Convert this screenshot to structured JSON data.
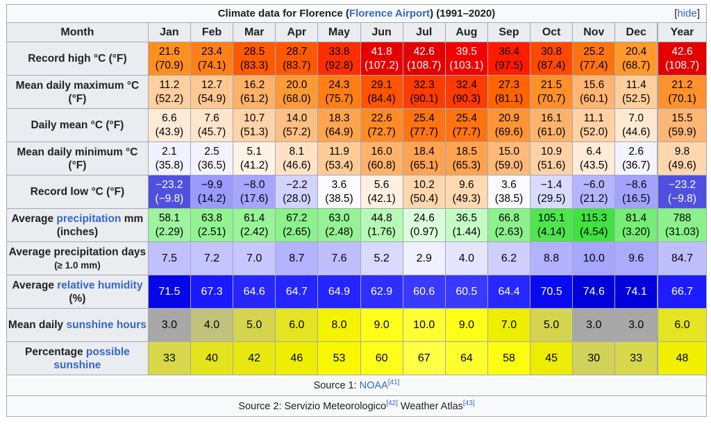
{
  "caption": {
    "prefix": "Climate data for Florence (",
    "link": "Florence Airport",
    "suffix": ") (1991–2020)",
    "hide_open": "[",
    "hide_label": "hide",
    "hide_close": "]"
  },
  "header": {
    "month_label": "Month",
    "months": [
      "Jan",
      "Feb",
      "Mar",
      "Apr",
      "May",
      "Jun",
      "Jul",
      "Aug",
      "Sep",
      "Oct",
      "Nov",
      "Dec"
    ],
    "year_label": "Year"
  },
  "rows": [
    {
      "key": "record-high",
      "label_parts": [
        {
          "text": "Record high °C (°F)",
          "link": false
        }
      ],
      "cells": [
        {
          "top": "21.6",
          "bottom": "(70.9)",
          "bg": "#ff8f1f",
          "fg": "#000000"
        },
        {
          "top": "23.4",
          "bottom": "(74.1)",
          "bg": "#ff8017",
          "fg": "#000000"
        },
        {
          "top": "28.5",
          "bottom": "(83.3)",
          "bg": "#ff5a00",
          "fg": "#000000"
        },
        {
          "top": "28.7",
          "bottom": "(83.7)",
          "bg": "#ff5900",
          "fg": "#000000"
        },
        {
          "top": "33.8",
          "bottom": "(92.8)",
          "bg": "#ff2e00",
          "fg": "#000000"
        },
        {
          "top": "41.8",
          "bottom": "(107.2)",
          "bg": "#e60000",
          "fg": "#ffffff"
        },
        {
          "top": "42.6",
          "bottom": "(108.7)",
          "bg": "#e30000",
          "fg": "#ffffff"
        },
        {
          "top": "39.5",
          "bottom": "(103.1)",
          "bg": "#f30000",
          "fg": "#ffffff"
        },
        {
          "top": "36.4",
          "bottom": "(97.5)",
          "bg": "#ff1a00",
          "fg": "#000000"
        },
        {
          "top": "30.8",
          "bottom": "(87.4)",
          "bg": "#ff4800",
          "fg": "#000000"
        },
        {
          "top": "25.2",
          "bottom": "(77.4)",
          "bg": "#ff7410",
          "fg": "#000000"
        },
        {
          "top": "20.4",
          "bottom": "(68.7)",
          "bg": "#ff9a2b",
          "fg": "#000000"
        },
        {
          "top": "42.6",
          "bottom": "(108.7)",
          "bg": "#e30000",
          "fg": "#ffffff"
        }
      ]
    },
    {
      "key": "mean-daily-maximum",
      "label_parts": [
        {
          "text": "Mean daily maximum °C (°F)",
          "link": false
        }
      ],
      "cells": [
        {
          "top": "11.2",
          "bottom": "(52.2)",
          "bg": "#ffcf9f",
          "fg": "#000000"
        },
        {
          "top": "12.7",
          "bottom": "(54.9)",
          "bg": "#ffc893",
          "fg": "#000000"
        },
        {
          "top": "16.2",
          "bottom": "(61.2)",
          "bg": "#ffb16a",
          "fg": "#000000"
        },
        {
          "top": "20.0",
          "bottom": "(68.0)",
          "bg": "#ff9a36",
          "fg": "#000000"
        },
        {
          "top": "24.3",
          "bottom": "(75.7)",
          "bg": "#ff7e16",
          "fg": "#000000"
        },
        {
          "top": "29.1",
          "bottom": "(84.4)",
          "bg": "#ff5400",
          "fg": "#000000"
        },
        {
          "top": "32.3",
          "bottom": "(90.1)",
          "bg": "#ff3b00",
          "fg": "#000000"
        },
        {
          "top": "32.4",
          "bottom": "(90.3)",
          "bg": "#ff3a00",
          "fg": "#000000"
        },
        {
          "top": "27.3",
          "bottom": "(81.1)",
          "bg": "#ff6400",
          "fg": "#000000"
        },
        {
          "top": "21.5",
          "bottom": "(70.7)",
          "bg": "#ff902a",
          "fg": "#000000"
        },
        {
          "top": "15.6",
          "bottom": "(60.1)",
          "bg": "#ffb573",
          "fg": "#000000"
        },
        {
          "top": "11.4",
          "bottom": "(52.5)",
          "bg": "#ffce9d",
          "fg": "#000000"
        },
        {
          "top": "21.2",
          "bottom": "(70.1)",
          "bg": "#ff922c",
          "fg": "#000000"
        }
      ]
    },
    {
      "key": "daily-mean",
      "label_parts": [
        {
          "text": "Daily mean °C (°F)",
          "link": false
        }
      ],
      "cells": [
        {
          "top": "6.6",
          "bottom": "(43.9)",
          "bg": "#ffead6",
          "fg": "#000000"
        },
        {
          "top": "7.6",
          "bottom": "(45.7)",
          "bg": "#ffe5cb",
          "fg": "#000000"
        },
        {
          "top": "10.7",
          "bottom": "(51.3)",
          "bg": "#ffd3a8",
          "fg": "#000000"
        },
        {
          "top": "14.0",
          "bottom": "(57.2)",
          "bg": "#ffbf83",
          "fg": "#000000"
        },
        {
          "top": "18.3",
          "bottom": "(64.9)",
          "bg": "#ffa550",
          "fg": "#000000"
        },
        {
          "top": "22.6",
          "bottom": "(72.7)",
          "bg": "#ff8b26",
          "fg": "#000000"
        },
        {
          "top": "25.4",
          "bottom": "(77.7)",
          "bg": "#ff7410",
          "fg": "#000000"
        },
        {
          "top": "25.4",
          "bottom": "(77.7)",
          "bg": "#ff7410",
          "fg": "#000000"
        },
        {
          "top": "20.9",
          "bottom": "(69.6)",
          "bg": "#ff9536",
          "fg": "#000000"
        },
        {
          "top": "16.1",
          "bottom": "(61.0)",
          "bg": "#ffb26c",
          "fg": "#000000"
        },
        {
          "top": "11.1",
          "bottom": "(52.0)",
          "bg": "#ffd1a3",
          "fg": "#000000"
        },
        {
          "top": "7.0",
          "bottom": "(44.6)",
          "bg": "#ffe8d1",
          "fg": "#000000"
        },
        {
          "top": "15.5",
          "bottom": "(59.9)",
          "bg": "#ffb675",
          "fg": "#000000"
        }
      ]
    },
    {
      "key": "mean-daily-minimum",
      "label_parts": [
        {
          "text": "Mean daily minimum °C (°F)",
          "link": false
        }
      ],
      "cells": [
        {
          "top": "2.1",
          "bottom": "(35.8)",
          "bg": "#f1f1ff",
          "fg": "#000000"
        },
        {
          "top": "2.5",
          "bottom": "(36.5)",
          "bg": "#f3f3ff",
          "fg": "#000000"
        },
        {
          "top": "5.1",
          "bottom": "(41.2)",
          "bg": "#fff2e6",
          "fg": "#000000"
        },
        {
          "top": "8.1",
          "bottom": "(46.6)",
          "bg": "#ffe2c6",
          "fg": "#000000"
        },
        {
          "top": "11.9",
          "bottom": "(53.4)",
          "bg": "#ffcc98",
          "fg": "#000000"
        },
        {
          "top": "16.0",
          "bottom": "(60.8)",
          "bg": "#ffb26b",
          "fg": "#000000"
        },
        {
          "top": "18.4",
          "bottom": "(65.1)",
          "bg": "#ffa352",
          "fg": "#000000"
        },
        {
          "top": "18.5",
          "bottom": "(65.3)",
          "bg": "#ffa350",
          "fg": "#000000"
        },
        {
          "top": "15.0",
          "bottom": "(59.0)",
          "bg": "#ffb97a",
          "fg": "#000000"
        },
        {
          "top": "10.9",
          "bottom": "(51.6)",
          "bg": "#ffd2a6",
          "fg": "#000000"
        },
        {
          "top": "6.4",
          "bottom": "(43.5)",
          "bg": "#ffebd8",
          "fg": "#000000"
        },
        {
          "top": "2.6",
          "bottom": "(36.7)",
          "bg": "#f4f4ff",
          "fg": "#000000"
        },
        {
          "top": "9.8",
          "bottom": "(49.6)",
          "bg": "#ffd7af",
          "fg": "#000000"
        }
      ]
    },
    {
      "key": "record-low",
      "label_parts": [
        {
          "text": "Record low °C (°F)",
          "link": false
        }
      ],
      "cells": [
        {
          "top": "−23.2",
          "bottom": "(−9.8)",
          "bg": "#5050e0",
          "fg": "#ffffff"
        },
        {
          "top": "−9.9",
          "bottom": "(14.2)",
          "bg": "#9a9aff",
          "fg": "#000000"
        },
        {
          "top": "−8.0",
          "bottom": "(17.6)",
          "bg": "#a6a6ff",
          "fg": "#000000"
        },
        {
          "top": "−2.2",
          "bottom": "(28.0)",
          "bg": "#d3d3ff",
          "fg": "#000000"
        },
        {
          "top": "3.6",
          "bottom": "(38.5)",
          "bg": "#fbfbff",
          "fg": "#000000"
        },
        {
          "top": "5.6",
          "bottom": "(42.1)",
          "bg": "#fff0e2",
          "fg": "#000000"
        },
        {
          "top": "10.2",
          "bottom": "(50.4)",
          "bg": "#ffd6ae",
          "fg": "#000000"
        },
        {
          "top": "9.6",
          "bottom": "(49.3)",
          "bg": "#ffd9b2",
          "fg": "#000000"
        },
        {
          "top": "3.6",
          "bottom": "(38.5)",
          "bg": "#fbfbff",
          "fg": "#000000"
        },
        {
          "top": "−1.4",
          "bottom": "(29.5)",
          "bg": "#dadaff",
          "fg": "#000000"
        },
        {
          "top": "−6.0",
          "bottom": "(21.2)",
          "bg": "#b5b5ff",
          "fg": "#000000"
        },
        {
          "top": "−8.6",
          "bottom": "(16.5)",
          "bg": "#a2a2ff",
          "fg": "#000000"
        },
        {
          "top": "−23.2",
          "bottom": "(−9.8)",
          "bg": "#5050e0",
          "fg": "#ffffff"
        }
      ]
    },
    {
      "key": "average-precipitation",
      "label_parts": [
        {
          "text": "Average ",
          "link": false
        },
        {
          "text": "precipitation",
          "link": true
        },
        {
          "text": " mm (inches)",
          "link": false
        }
      ],
      "cells": [
        {
          "top": "58.1",
          "bottom": "(2.29)",
          "bg": "#9cf59c",
          "fg": "#000000"
        },
        {
          "top": "63.8",
          "bottom": "(2.51)",
          "bg": "#92f392",
          "fg": "#000000"
        },
        {
          "top": "61.4",
          "bottom": "(2.42)",
          "bg": "#97f497",
          "fg": "#000000"
        },
        {
          "top": "67.2",
          "bottom": "(2.65)",
          "bg": "#8cf28c",
          "fg": "#000000"
        },
        {
          "top": "63.0",
          "bottom": "(2.48)",
          "bg": "#94f394",
          "fg": "#000000"
        },
        {
          "top": "44.8",
          "bottom": "(1.76)",
          "bg": "#b5f9b5",
          "fg": "#000000"
        },
        {
          "top": "24.6",
          "bottom": "(0.97)",
          "bg": "#dcfddc",
          "fg": "#000000"
        },
        {
          "top": "36.5",
          "bottom": "(1.44)",
          "bg": "#c4fbc4",
          "fg": "#000000"
        },
        {
          "top": "66.8",
          "bottom": "(2.63)",
          "bg": "#8df28d",
          "fg": "#000000"
        },
        {
          "top": "105.1",
          "bottom": "(4.14)",
          "bg": "#4ee54e",
          "fg": "#000000"
        },
        {
          "top": "115.3",
          "bottom": "(4.54)",
          "bg": "#3fe23f",
          "fg": "#000000"
        },
        {
          "top": "81.4",
          "bottom": "(3.20)",
          "bg": "#74ee74",
          "fg": "#000000"
        },
        {
          "top": "788",
          "bottom": "(31.03)",
          "bg": "#8af28a",
          "fg": "#000000"
        }
      ]
    },
    {
      "key": "average-precipitation-days",
      "label_parts": [
        {
          "text": "Average precipitation days ",
          "link": false
        },
        {
          "text": "(≥ 1.0 mm)",
          "link": false,
          "small": true
        }
      ],
      "cells": [
        {
          "top": "7.5",
          "bg": "#c0c0ff",
          "fg": "#000000"
        },
        {
          "top": "7.2",
          "bg": "#c4c4ff",
          "fg": "#000000"
        },
        {
          "top": "7.0",
          "bg": "#c7c7ff",
          "fg": "#000000"
        },
        {
          "top": "8.7",
          "bg": "#b3b3ff",
          "fg": "#000000"
        },
        {
          "top": "7.6",
          "bg": "#bfbfff",
          "fg": "#000000"
        },
        {
          "top": "5.2",
          "bg": "#d9d9ff",
          "fg": "#000000"
        },
        {
          "top": "2.9",
          "bg": "#f0f0ff",
          "fg": "#000000"
        },
        {
          "top": "4.0",
          "bg": "#e5e5ff",
          "fg": "#000000"
        },
        {
          "top": "6.2",
          "bg": "#cfcfff",
          "fg": "#000000"
        },
        {
          "top": "8.8",
          "bg": "#b2b2ff",
          "fg": "#000000"
        },
        {
          "top": "10.0",
          "bg": "#a6a6ff",
          "fg": "#000000"
        },
        {
          "top": "9.6",
          "bg": "#aaaaff",
          "fg": "#000000"
        },
        {
          "top": "84.7",
          "bg": "#bfbfff",
          "fg": "#000000"
        }
      ]
    },
    {
      "key": "average-relative-humidity",
      "label_parts": [
        {
          "text": "Average ",
          "link": false
        },
        {
          "text": "relative humidity",
          "link": true
        },
        {
          "text": " (%)",
          "link": false
        }
      ],
      "cells": [
        {
          "top": "71.5",
          "bg": "#0606e6",
          "fg": "#ffffff"
        },
        {
          "top": "67.3",
          "bg": "#1a1aff",
          "fg": "#ffffff"
        },
        {
          "top": "64.6",
          "bg": "#2626ff",
          "fg": "#ffffff"
        },
        {
          "top": "64.7",
          "bg": "#2525ff",
          "fg": "#ffffff"
        },
        {
          "top": "64.9",
          "bg": "#2424ff",
          "fg": "#ffffff"
        },
        {
          "top": "62.9",
          "bg": "#2e2eff",
          "fg": "#ffffff"
        },
        {
          "top": "60.6",
          "bg": "#3939ff",
          "fg": "#ffffff"
        },
        {
          "top": "60.5",
          "bg": "#3939ff",
          "fg": "#ffffff"
        },
        {
          "top": "64.4",
          "bg": "#2727ff",
          "fg": "#ffffff"
        },
        {
          "top": "70.5",
          "bg": "#0a0af0",
          "fg": "#ffffff"
        },
        {
          "top": "74.6",
          "bg": "#0000d8",
          "fg": "#ffffff"
        },
        {
          "top": "74.1",
          "bg": "#0000db",
          "fg": "#ffffff"
        },
        {
          "top": "66.7",
          "bg": "#1c1cff",
          "fg": "#ffffff"
        }
      ]
    },
    {
      "key": "mean-daily-sunshine-hours",
      "label_parts": [
        {
          "text": "Mean daily ",
          "link": false
        },
        {
          "text": "sunshine hours",
          "link": true
        }
      ],
      "cells": [
        {
          "top": "3.0",
          "bg": "#a8a8a8",
          "fg": "#000000"
        },
        {
          "top": "4.0",
          "bg": "#c2c27a",
          "fg": "#000000"
        },
        {
          "top": "5.0",
          "bg": "#d4d44e",
          "fg": "#000000"
        },
        {
          "top": "6.0",
          "bg": "#e4e420",
          "fg": "#000000"
        },
        {
          "top": "8.0",
          "bg": "#f4f400",
          "fg": "#000000"
        },
        {
          "top": "9.0",
          "bg": "#ffff17",
          "fg": "#000000"
        },
        {
          "top": "10.0",
          "bg": "#ffff33",
          "fg": "#000000"
        },
        {
          "top": "9.0",
          "bg": "#ffff17",
          "fg": "#000000"
        },
        {
          "top": "7.0",
          "bg": "#eeee00",
          "fg": "#000000"
        },
        {
          "top": "5.0",
          "bg": "#d4d44e",
          "fg": "#000000"
        },
        {
          "top": "3.0",
          "bg": "#a8a8a8",
          "fg": "#000000"
        },
        {
          "top": "3.0",
          "bg": "#a8a8a8",
          "fg": "#000000"
        },
        {
          "top": "6.0",
          "bg": "#e4e420",
          "fg": "#000000"
        }
      ]
    },
    {
      "key": "percentage-possible-sunshine",
      "label_parts": [
        {
          "text": "Percentage ",
          "link": false
        },
        {
          "text": "possible sunshine",
          "link": true
        }
      ],
      "cells": [
        {
          "top": "33",
          "bg": "#d8d84a",
          "fg": "#000000"
        },
        {
          "top": "40",
          "bg": "#e4e41e",
          "fg": "#000000"
        },
        {
          "top": "42",
          "bg": "#e8e810",
          "fg": "#000000"
        },
        {
          "top": "46",
          "bg": "#eeee00",
          "fg": "#000000"
        },
        {
          "top": "53",
          "bg": "#f8f800",
          "fg": "#000000"
        },
        {
          "top": "60",
          "bg": "#ffff1a",
          "fg": "#000000"
        },
        {
          "top": "67",
          "bg": "#ffff45",
          "fg": "#000000"
        },
        {
          "top": "64",
          "bg": "#ffff30",
          "fg": "#000000"
        },
        {
          "top": "58",
          "bg": "#fdfd10",
          "fg": "#000000"
        },
        {
          "top": "45",
          "bg": "#ecec04",
          "fg": "#000000"
        },
        {
          "top": "30",
          "bg": "#d2d25a",
          "fg": "#000000"
        },
        {
          "top": "33",
          "bg": "#d8d84a",
          "fg": "#000000"
        },
        {
          "top": "48",
          "bg": "#f0f000",
          "fg": "#000000"
        }
      ]
    }
  ],
  "sources": {
    "source1": {
      "prefix": "Source 1: ",
      "link": "NOAA",
      "ref": "[41]"
    },
    "source2": {
      "prefix": "Source 2: Servizio Meteorologico",
      "ref1": "[42]",
      "middle": " Weather Atlas",
      "ref2": "[43]"
    }
  },
  "colors": {
    "link": "#3366cc",
    "header_bg": "#eaecf0",
    "border": "#a2a9b1"
  }
}
